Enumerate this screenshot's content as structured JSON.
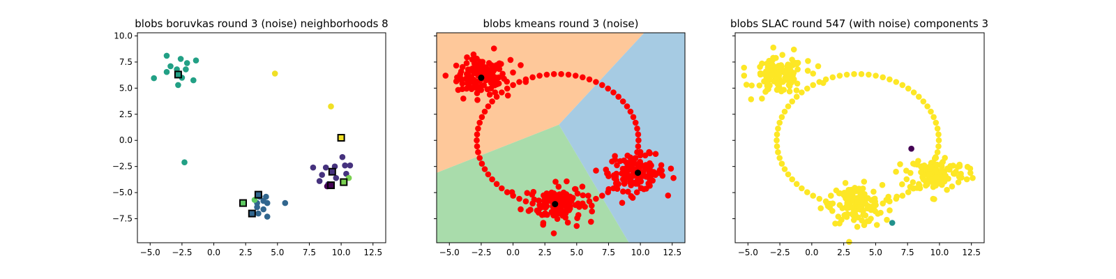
{
  "chart_data": [
    {
      "type": "scatter",
      "title": "blobs boruvkas round 3 (noise) neighborhoods 8",
      "xlim": [
        -6,
        13.5
      ],
      "ylim": [
        -9.8,
        10.3
      ],
      "xticks": [
        "−5.0",
        "−2.5",
        "0.0",
        "2.5",
        "5.0",
        "7.5",
        "10.0",
        "12.5"
      ],
      "xtick_values": [
        -5,
        -2.5,
        0,
        2.5,
        5,
        7.5,
        10,
        12.5
      ],
      "yticks": [
        "10.0",
        "7.5",
        "5.0",
        "2.5",
        "0.0",
        "−2.5",
        "−5.0",
        "−7.5"
      ],
      "ytick_values": [
        10,
        7.5,
        5,
        2.5,
        0,
        -2.5,
        -5,
        -7.5
      ],
      "yticks_visible": true,
      "background_regions": [],
      "points": [
        {
          "x": -3.7,
          "y": 8.1,
          "color": "#22a085"
        },
        {
          "x": -2.6,
          "y": 7.8,
          "color": "#22a085"
        },
        {
          "x": -1.4,
          "y": 7.65,
          "color": "#22a085"
        },
        {
          "x": -2.1,
          "y": 7.4,
          "color": "#22a085"
        },
        {
          "x": -3.4,
          "y": 7.1,
          "color": "#22a085"
        },
        {
          "x": -2.9,
          "y": 6.8,
          "color": "#22a085"
        },
        {
          "x": -2.2,
          "y": 6.8,
          "color": "#22a085"
        },
        {
          "x": -3.7,
          "y": 6.55,
          "color": "#22a085"
        },
        {
          "x": -2.5,
          "y": 6.0,
          "color": "#22a085"
        },
        {
          "x": -4.7,
          "y": 5.95,
          "color": "#22a085"
        },
        {
          "x": -1.6,
          "y": 5.75,
          "color": "#22a085"
        },
        {
          "x": -2.8,
          "y": 5.3,
          "color": "#22a085"
        },
        {
          "x": -2.3,
          "y": -2.1,
          "color": "#22a085"
        },
        {
          "x": 4.8,
          "y": 6.4,
          "color": "#f0e025"
        },
        {
          "x": 9.2,
          "y": 3.25,
          "color": "#f0e025"
        },
        {
          "x": 7.8,
          "y": -2.6,
          "color": "#46327e"
        },
        {
          "x": 8.8,
          "y": -2.6,
          "color": "#46327e"
        },
        {
          "x": 9.5,
          "y": -2.5,
          "color": "#46327e"
        },
        {
          "x": 10.1,
          "y": -1.6,
          "color": "#46327e"
        },
        {
          "x": 10.3,
          "y": -2.4,
          "color": "#46327e"
        },
        {
          "x": 10.7,
          "y": -2.4,
          "color": "#46327e"
        },
        {
          "x": 8.5,
          "y": -3.3,
          "color": "#46327e"
        },
        {
          "x": 8.3,
          "y": -3.9,
          "color": "#46327e"
        },
        {
          "x": 9.6,
          "y": -3.6,
          "color": "#46327e"
        },
        {
          "x": 10.4,
          "y": -3.2,
          "color": "#46327e"
        },
        {
          "x": 9.0,
          "y": -4.2,
          "color": "#46327e"
        },
        {
          "x": 10.6,
          "y": -3.6,
          "color": "#7ad151"
        },
        {
          "x": 8.9,
          "y": -4.4,
          "color": "#440154"
        },
        {
          "x": 3.6,
          "y": -5.4,
          "color": "#31668e"
        },
        {
          "x": 4.1,
          "y": -5.4,
          "color": "#31668e"
        },
        {
          "x": 3.9,
          "y": -5.8,
          "color": "#31668e"
        },
        {
          "x": 3.4,
          "y": -6.0,
          "color": "#31668e"
        },
        {
          "x": 4.2,
          "y": -6.0,
          "color": "#31668e"
        },
        {
          "x": 5.6,
          "y": -6.0,
          "color": "#31668e"
        },
        {
          "x": 3.9,
          "y": -6.6,
          "color": "#31668e"
        },
        {
          "x": 3.4,
          "y": -6.4,
          "color": "#31668e"
        },
        {
          "x": 4.2,
          "y": -7.3,
          "color": "#31668e"
        },
        {
          "x": 3.5,
          "y": -7.0,
          "color": "#31668e"
        },
        {
          "x": 3.2,
          "y": -5.7,
          "color": "#5ec962"
        }
      ],
      "centers": [
        {
          "x": -2.8,
          "y": 6.3,
          "color": "#22a085"
        },
        {
          "x": 10.0,
          "y": 0.25,
          "color": "#f0e025"
        },
        {
          "x": 9.3,
          "y": -3.0,
          "color": "#46327e"
        },
        {
          "x": 9.2,
          "y": -4.3,
          "color": "#440154"
        },
        {
          "x": 10.2,
          "y": -4.0,
          "color": "#7ad151"
        },
        {
          "x": 3.5,
          "y": -5.2,
          "color": "#31668e"
        },
        {
          "x": 2.3,
          "y": -6.0,
          "color": "#5ec962"
        },
        {
          "x": 3.0,
          "y": -7.0,
          "color": "#31668e"
        }
      ]
    },
    {
      "type": "scatter",
      "title": "blobs kmeans round 3 (noise)",
      "xlim": [
        -6,
        13.5
      ],
      "ylim": [
        -9.8,
        10.3
      ],
      "xticks": [
        "−5.0",
        "−2.5",
        "0.0",
        "2.5",
        "5.0",
        "7.5",
        "10.0",
        "12.5"
      ],
      "xtick_values": [
        -5,
        -2.5,
        0,
        2.5,
        5,
        7.5,
        10,
        12.5
      ],
      "yticks_visible": false,
      "point_color": "#ff0000",
      "center_color": "#000000",
      "background_regions": [
        {
          "color": "#fec89a",
          "polygon": [
            [
              -6,
              10.3
            ],
            [
              10.3,
              10.3
            ],
            [
              3.6,
              1.5
            ],
            [
              -6,
              -3.1
            ]
          ]
        },
        {
          "color": "#a6cbe3",
          "polygon": [
            [
              10.3,
              10.3
            ],
            [
              13.5,
              10.3
            ],
            [
              13.5,
              -9.8
            ],
            [
              9.1,
              -9.8
            ],
            [
              3.6,
              1.5
            ]
          ]
        },
        {
          "color": "#a9dcab",
          "polygon": [
            [
              -6,
              -3.1
            ],
            [
              3.6,
              1.5
            ],
            [
              9.1,
              -9.8
            ],
            [
              -6,
              -9.8
            ]
          ]
        }
      ],
      "blobs": [
        {
          "cx": -2.5,
          "cy": 6.1,
          "sx": 0.95,
          "sy": 0.85,
          "n": 120
        },
        {
          "cx": 3.4,
          "cy": -6.0,
          "sx": 1.0,
          "sy": 0.9,
          "n": 120
        },
        {
          "cx": 9.7,
          "cy": -3.1,
          "sx": 1.1,
          "sy": 0.85,
          "n": 120
        }
      ],
      "ring": {
        "cx": 3.5,
        "cy": 0.0,
        "r": 6.35,
        "n": 70
      },
      "scatter_points": [
        {
          "x": -0.2,
          "y": 7.7
        },
        {
          "x": 0.0,
          "y": 6.5
        },
        {
          "x": -1.5,
          "y": 8.8
        },
        {
          "x": -5.3,
          "y": 6.2
        },
        {
          "x": 1.0,
          "y": 5.6
        },
        {
          "x": -0.4,
          "y": 4.3
        },
        {
          "x": -3.9,
          "y": 4.0
        },
        {
          "x": 0.6,
          "y": 7.2
        },
        {
          "x": 5.9,
          "y": -5.3
        },
        {
          "x": 0.6,
          "y": -6.6
        },
        {
          "x": 6.2,
          "y": -6.8
        },
        {
          "x": 1.5,
          "y": -5.2
        },
        {
          "x": 5.0,
          "y": -8.2
        },
        {
          "x": 3.2,
          "y": -8.9
        },
        {
          "x": 12.6,
          "y": -3.6
        },
        {
          "x": 12.4,
          "y": -2.7
        },
        {
          "x": 7.3,
          "y": -2.8
        },
        {
          "x": 9.4,
          "y": -5.5
        },
        {
          "x": 8.0,
          "y": -1.5
        },
        {
          "x": 11.2,
          "y": -1.3
        }
      ],
      "centers": [
        {
          "x": -2.5,
          "y": 6.0
        },
        {
          "x": 3.3,
          "y": -6.1
        },
        {
          "x": 9.8,
          "y": -3.1
        }
      ]
    },
    {
      "type": "scatter",
      "title": "blobs SLAC round 547 (with noise) components 3",
      "xlim": [
        -6,
        13.5
      ],
      "ylim": [
        -9.8,
        10.3
      ],
      "xticks": [
        "−5.0",
        "−2.5",
        "0.0",
        "2.5",
        "5.0",
        "7.5",
        "10.0",
        "12.5"
      ],
      "xtick_values": [
        -5,
        -2.5,
        0,
        2.5,
        5,
        7.5,
        10,
        12.5
      ],
      "yticks_visible": false,
      "point_color": "#fde725",
      "background_regions": [],
      "blobs": [
        {
          "cx": -2.6,
          "cy": 6.1,
          "sx": 0.95,
          "sy": 0.85,
          "n": 120
        },
        {
          "cx": 3.5,
          "cy": -6.1,
          "sx": 1.0,
          "sy": 0.9,
          "n": 120
        },
        {
          "cx": 9.8,
          "cy": -3.2,
          "sx": 1.1,
          "sy": 0.85,
          "n": 120
        }
      ],
      "ring": {
        "cx": 3.6,
        "cy": 0.0,
        "r": 6.35,
        "n": 70
      },
      "scatter_points": [
        {
          "x": -0.3,
          "y": 7.6
        },
        {
          "x": 0.1,
          "y": 6.4
        },
        {
          "x": -1.4,
          "y": 8.7
        },
        {
          "x": -5.3,
          "y": 6.2
        },
        {
          "x": 0.9,
          "y": 5.5
        },
        {
          "x": -3.9,
          "y": 4.0
        },
        {
          "x": 0.5,
          "y": 7.1
        },
        {
          "x": 6.0,
          "y": -5.4
        },
        {
          "x": 0.7,
          "y": -6.5
        },
        {
          "x": 6.1,
          "y": -6.7
        },
        {
          "x": 1.5,
          "y": -5.3
        },
        {
          "x": 5.1,
          "y": -8.1
        },
        {
          "x": 12.6,
          "y": -3.6
        },
        {
          "x": 12.4,
          "y": -2.7
        },
        {
          "x": 7.4,
          "y": -2.9
        },
        {
          "x": 9.5,
          "y": -5.6
        }
      ],
      "outliers": [
        {
          "x": 7.8,
          "y": -0.8,
          "color": "#440154"
        },
        {
          "x": 6.3,
          "y": -7.9,
          "color": "#21918c"
        }
      ]
    }
  ]
}
